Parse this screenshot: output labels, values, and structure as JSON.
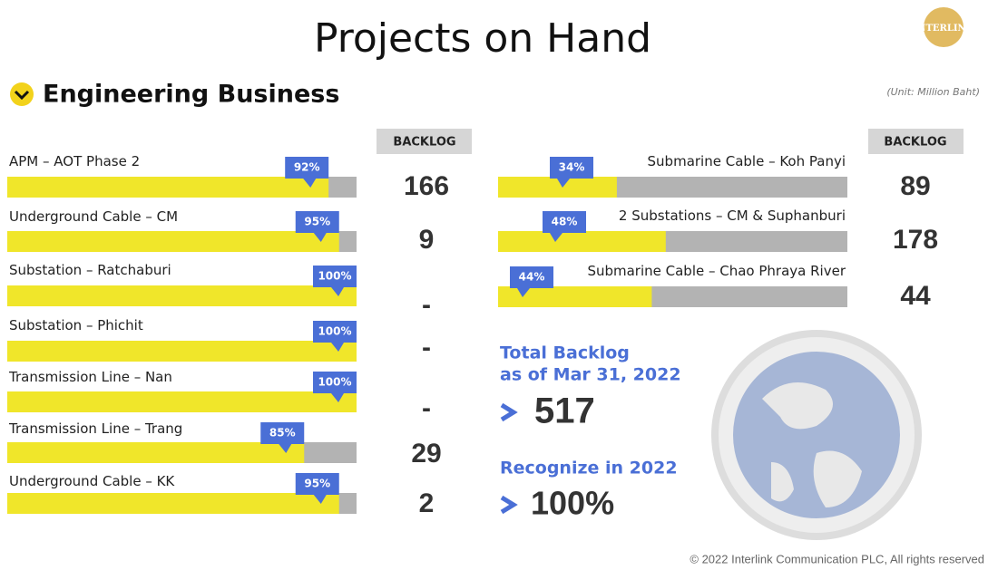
{
  "header": {
    "title": "Projects on Hand",
    "section": "Engineering Business",
    "unit": "(Unit: Million Baht)",
    "logo": "INTERLINK"
  },
  "backlog_header": "BACKLOG",
  "left_projects": [
    {
      "name": "APM – AOT Phase 2",
      "progress": 92,
      "progress_label": "92%",
      "backlog": 166
    },
    {
      "name": "Underground Cable – CM",
      "progress": 95,
      "progress_label": "95%",
      "backlog": 9
    },
    {
      "name": "Substation – Ratchaburi",
      "progress": 100,
      "progress_label": "100%",
      "backlog": "-"
    },
    {
      "name": "Substation – Phichit",
      "progress": 100,
      "progress_label": "100%",
      "backlog": "-"
    },
    {
      "name": "Transmission Line – Nan",
      "progress": 100,
      "progress_label": "100%",
      "backlog": "-"
    },
    {
      "name": "Transmission Line – Trang",
      "progress": 85,
      "progress_label": "85%",
      "backlog": 29
    },
    {
      "name": "Underground Cable – KK",
      "progress": 95,
      "progress_label": "95%",
      "backlog": 2
    }
  ],
  "right_projects": [
    {
      "name": "Submarine Cable – Koh Panyi",
      "progress": 34,
      "progress_label": "34%",
      "backlog": 89
    },
    {
      "name": "2 Substations – CM &  Suphanburi",
      "progress": 48,
      "progress_label": "48%",
      "backlog": 178
    },
    {
      "name": "Submarine Cable – Chao Phraya River",
      "progress": 44,
      "progress_label": "44%",
      "backlog": 44
    }
  ],
  "summary": {
    "total_label_1": "Total Backlog",
    "total_label_2": "as of Mar 31, 2022",
    "total_value": "517",
    "recognize_label": "Recognize in 2022",
    "recognize_value": "100%"
  },
  "footer": "© 2022 Interlink Communication PLC, All rights reserved"
}
